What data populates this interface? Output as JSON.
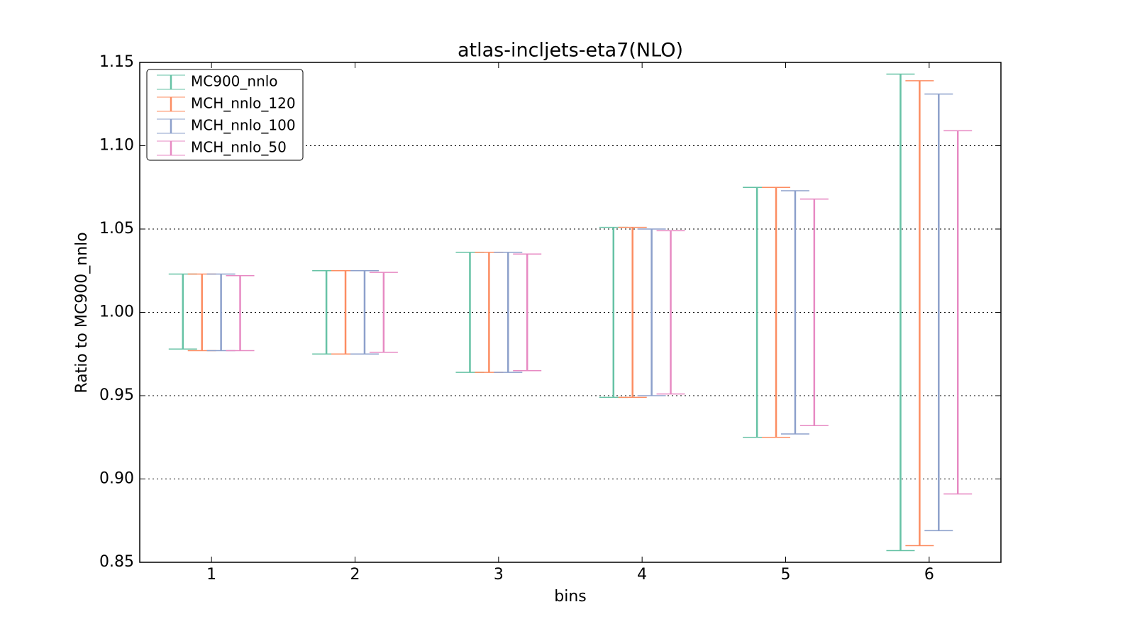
{
  "chart_data": {
    "type": "errorbar",
    "title": "atlas-incljets-eta7(NLO)",
    "x_label": "bins",
    "y_label": "Ratio to MC900_nnlo",
    "categories": [
      "1",
      "2",
      "3",
      "4",
      "5",
      "6"
    ],
    "series": [
      {
        "name": "MC900_nnlo",
        "color": "#66c2a5",
        "low": [
          0.978,
          0.975,
          0.964,
          0.949,
          0.925,
          0.857
        ],
        "high": [
          1.023,
          1.025,
          1.036,
          1.051,
          1.075,
          1.143
        ]
      },
      {
        "name": "MCH_nnlo_120",
        "color": "#fc8d62",
        "low": [
          0.977,
          0.975,
          0.964,
          0.949,
          0.925,
          0.86
        ],
        "high": [
          1.023,
          1.025,
          1.036,
          1.051,
          1.075,
          1.139
        ]
      },
      {
        "name": "MCH_nnlo_100",
        "color": "#8da0cb",
        "low": [
          0.977,
          0.975,
          0.964,
          0.95,
          0.927,
          0.869
        ],
        "high": [
          1.023,
          1.025,
          1.036,
          1.05,
          1.073,
          1.131
        ]
      },
      {
        "name": "MCH_nnlo_50",
        "color": "#e78ac3",
        "low": [
          0.977,
          0.976,
          0.965,
          0.951,
          0.932,
          0.891
        ],
        "high": [
          1.022,
          1.024,
          1.035,
          1.049,
          1.068,
          1.109
        ]
      }
    ],
    "ylim": [
      0.85,
      1.15
    ],
    "yticks": [
      0.85,
      {
        "value": 0.9,
        "label": "0.90"
      },
      0.95,
      {
        "value": 1.0,
        "label": "1.00"
      },
      1.05,
      {
        "value": 1.1,
        "label": "1.10"
      },
      1.15
    ],
    "grid": true,
    "legend": "upper left"
  }
}
